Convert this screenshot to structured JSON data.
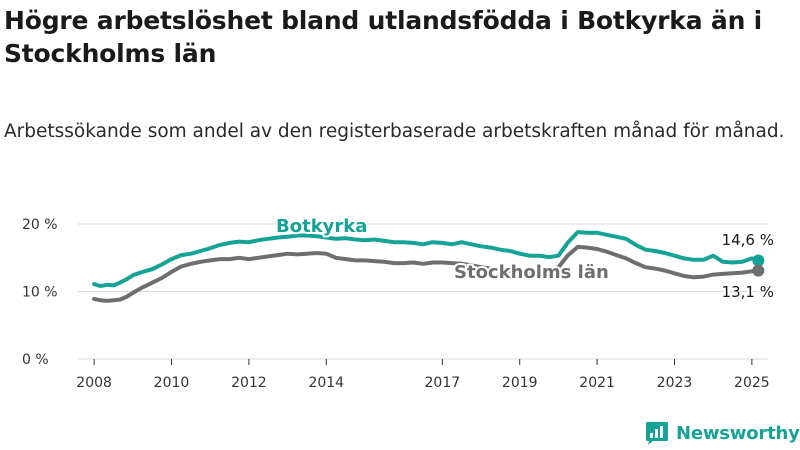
{
  "title": "Högre arbetslöshet bland utlandsfödda i Botkyrka än i Stockholms län",
  "subtitle": "Arbetssökande som andel av den registerbaserade arbetskraften månad för månad.",
  "brand": {
    "name": "Newsworthy",
    "icon": "newsworthy-logo-icon"
  },
  "colors": {
    "botkyrka": "#14a396",
    "stockholm": "#6e6e6e",
    "grid": "#d9d9d9",
    "axis": "#333333"
  },
  "chart_data": {
    "type": "line",
    "title": "Högre arbetslöshet bland utlandsfödda i Botkyrka än i Stockholms län",
    "subtitle": "Arbetssökande som andel av den registerbaserade arbetskraften månad för månad.",
    "xlabel": "",
    "ylabel": "",
    "x_ticks": [
      "2008",
      "2010",
      "2012",
      "2014",
      "2017",
      "2019",
      "2021",
      "2023",
      "2025"
    ],
    "y_ticks": [
      {
        "value": 0,
        "label": "0 %"
      },
      {
        "value": 10,
        "label": "10 %"
      },
      {
        "value": 20,
        "label": "20 %"
      }
    ],
    "ylim": [
      0,
      20
    ],
    "xlim": [
      "2007-08",
      "2025-06"
    ],
    "grid": "horizontal",
    "legend": "inline labels",
    "series": [
      {
        "name": "Botkyrka",
        "last_label": "14,6 %",
        "points": [
          [
            "2008-01",
            11.1
          ],
          [
            "2008-03",
            10.8
          ],
          [
            "2008-05",
            11.0
          ],
          [
            "2008-07",
            10.9
          ],
          [
            "2008-09",
            11.3
          ],
          [
            "2008-11",
            11.8
          ],
          [
            "2009-01",
            12.4
          ],
          [
            "2009-04",
            12.9
          ],
          [
            "2009-07",
            13.3
          ],
          [
            "2009-10",
            14.0
          ],
          [
            "2010-01",
            14.8
          ],
          [
            "2010-04",
            15.4
          ],
          [
            "2010-07",
            15.6
          ],
          [
            "2010-10",
            16.0
          ],
          [
            "2011-01",
            16.4
          ],
          [
            "2011-04",
            16.9
          ],
          [
            "2011-07",
            17.2
          ],
          [
            "2011-10",
            17.4
          ],
          [
            "2012-01",
            17.3
          ],
          [
            "2012-04",
            17.6
          ],
          [
            "2012-07",
            17.8
          ],
          [
            "2012-10",
            18.0
          ],
          [
            "2013-01",
            18.1
          ],
          [
            "2013-04",
            18.3
          ],
          [
            "2013-07",
            18.3
          ],
          [
            "2013-10",
            18.2
          ],
          [
            "2014-01",
            18.0
          ],
          [
            "2014-04",
            17.8
          ],
          [
            "2014-07",
            17.9
          ],
          [
            "2014-10",
            17.7
          ],
          [
            "2015-01",
            17.6
          ],
          [
            "2015-04",
            17.7
          ],
          [
            "2015-07",
            17.5
          ],
          [
            "2015-10",
            17.3
          ],
          [
            "2016-01",
            17.3
          ],
          [
            "2016-04",
            17.2
          ],
          [
            "2016-07",
            17.0
          ],
          [
            "2016-10",
            17.3
          ],
          [
            "2017-01",
            17.2
          ],
          [
            "2017-04",
            17.0
          ],
          [
            "2017-07",
            17.3
          ],
          [
            "2017-10",
            17.0
          ],
          [
            "2018-01",
            16.7
          ],
          [
            "2018-04",
            16.5
          ],
          [
            "2018-07",
            16.2
          ],
          [
            "2018-10",
            16.0
          ],
          [
            "2019-01",
            15.6
          ],
          [
            "2019-04",
            15.3
          ],
          [
            "2019-07",
            15.3
          ],
          [
            "2019-10",
            15.1
          ],
          [
            "2020-01",
            15.3
          ],
          [
            "2020-04",
            17.3
          ],
          [
            "2020-07",
            18.8
          ],
          [
            "2020-10",
            18.7
          ],
          [
            "2021-01",
            18.7
          ],
          [
            "2021-04",
            18.4
          ],
          [
            "2021-07",
            18.1
          ],
          [
            "2021-10",
            17.8
          ],
          [
            "2022-01",
            16.9
          ],
          [
            "2022-04",
            16.2
          ],
          [
            "2022-07",
            16.0
          ],
          [
            "2022-10",
            15.7
          ],
          [
            "2023-01",
            15.3
          ],
          [
            "2023-04",
            14.9
          ],
          [
            "2023-07",
            14.7
          ],
          [
            "2023-10",
            14.7
          ],
          [
            "2024-01",
            15.3
          ],
          [
            "2024-04",
            14.4
          ],
          [
            "2024-07",
            14.3
          ],
          [
            "2024-10",
            14.4
          ],
          [
            "2025-01",
            14.9
          ],
          [
            "2025-03",
            14.6
          ]
        ]
      },
      {
        "name": "Stockholms län",
        "last_label": "13,1 %",
        "points": [
          [
            "2008-01",
            8.9
          ],
          [
            "2008-03",
            8.7
          ],
          [
            "2008-05",
            8.6
          ],
          [
            "2008-07",
            8.7
          ],
          [
            "2008-09",
            8.8
          ],
          [
            "2008-11",
            9.2
          ],
          [
            "2009-01",
            9.8
          ],
          [
            "2009-04",
            10.6
          ],
          [
            "2009-07",
            11.3
          ],
          [
            "2009-10",
            12.0
          ],
          [
            "2010-01",
            12.9
          ],
          [
            "2010-04",
            13.7
          ],
          [
            "2010-07",
            14.1
          ],
          [
            "2010-10",
            14.4
          ],
          [
            "2011-01",
            14.6
          ],
          [
            "2011-04",
            14.8
          ],
          [
            "2011-07",
            14.8
          ],
          [
            "2011-10",
            15.0
          ],
          [
            "2012-01",
            14.8
          ],
          [
            "2012-04",
            15.0
          ],
          [
            "2012-07",
            15.2
          ],
          [
            "2012-10",
            15.4
          ],
          [
            "2013-01",
            15.6
          ],
          [
            "2013-04",
            15.5
          ],
          [
            "2013-07",
            15.6
          ],
          [
            "2013-10",
            15.7
          ],
          [
            "2014-01",
            15.6
          ],
          [
            "2014-04",
            15.0
          ],
          [
            "2014-07",
            14.8
          ],
          [
            "2014-10",
            14.6
          ],
          [
            "2015-01",
            14.6
          ],
          [
            "2015-04",
            14.5
          ],
          [
            "2015-07",
            14.4
          ],
          [
            "2015-10",
            14.2
          ],
          [
            "2016-01",
            14.2
          ],
          [
            "2016-04",
            14.3
          ],
          [
            "2016-07",
            14.1
          ],
          [
            "2016-10",
            14.3
          ],
          [
            "2017-01",
            14.3
          ],
          [
            "2017-04",
            14.2
          ],
          [
            "2017-07",
            14.1
          ],
          [
            "2017-10",
            13.9
          ],
          [
            "2018-01",
            13.6
          ],
          [
            "2018-04",
            13.4
          ],
          [
            "2018-07",
            13.2
          ],
          [
            "2018-10",
            13.1
          ],
          [
            "2019-01",
            13.0
          ],
          [
            "2019-04",
            13.0
          ],
          [
            "2019-07",
            13.0
          ],
          [
            "2019-10",
            13.2
          ],
          [
            "2020-01",
            13.6
          ],
          [
            "2020-04",
            15.4
          ],
          [
            "2020-07",
            16.6
          ],
          [
            "2020-10",
            16.5
          ],
          [
            "2021-01",
            16.3
          ],
          [
            "2021-04",
            15.9
          ],
          [
            "2021-07",
            15.4
          ],
          [
            "2021-10",
            14.9
          ],
          [
            "2022-01",
            14.2
          ],
          [
            "2022-04",
            13.6
          ],
          [
            "2022-07",
            13.4
          ],
          [
            "2022-10",
            13.1
          ],
          [
            "2023-01",
            12.7
          ],
          [
            "2023-04",
            12.3
          ],
          [
            "2023-07",
            12.1
          ],
          [
            "2023-10",
            12.2
          ],
          [
            "2024-01",
            12.5
          ],
          [
            "2024-04",
            12.6
          ],
          [
            "2024-07",
            12.7
          ],
          [
            "2024-10",
            12.8
          ],
          [
            "2025-01",
            13.0
          ],
          [
            "2025-03",
            13.1
          ]
        ]
      }
    ]
  }
}
